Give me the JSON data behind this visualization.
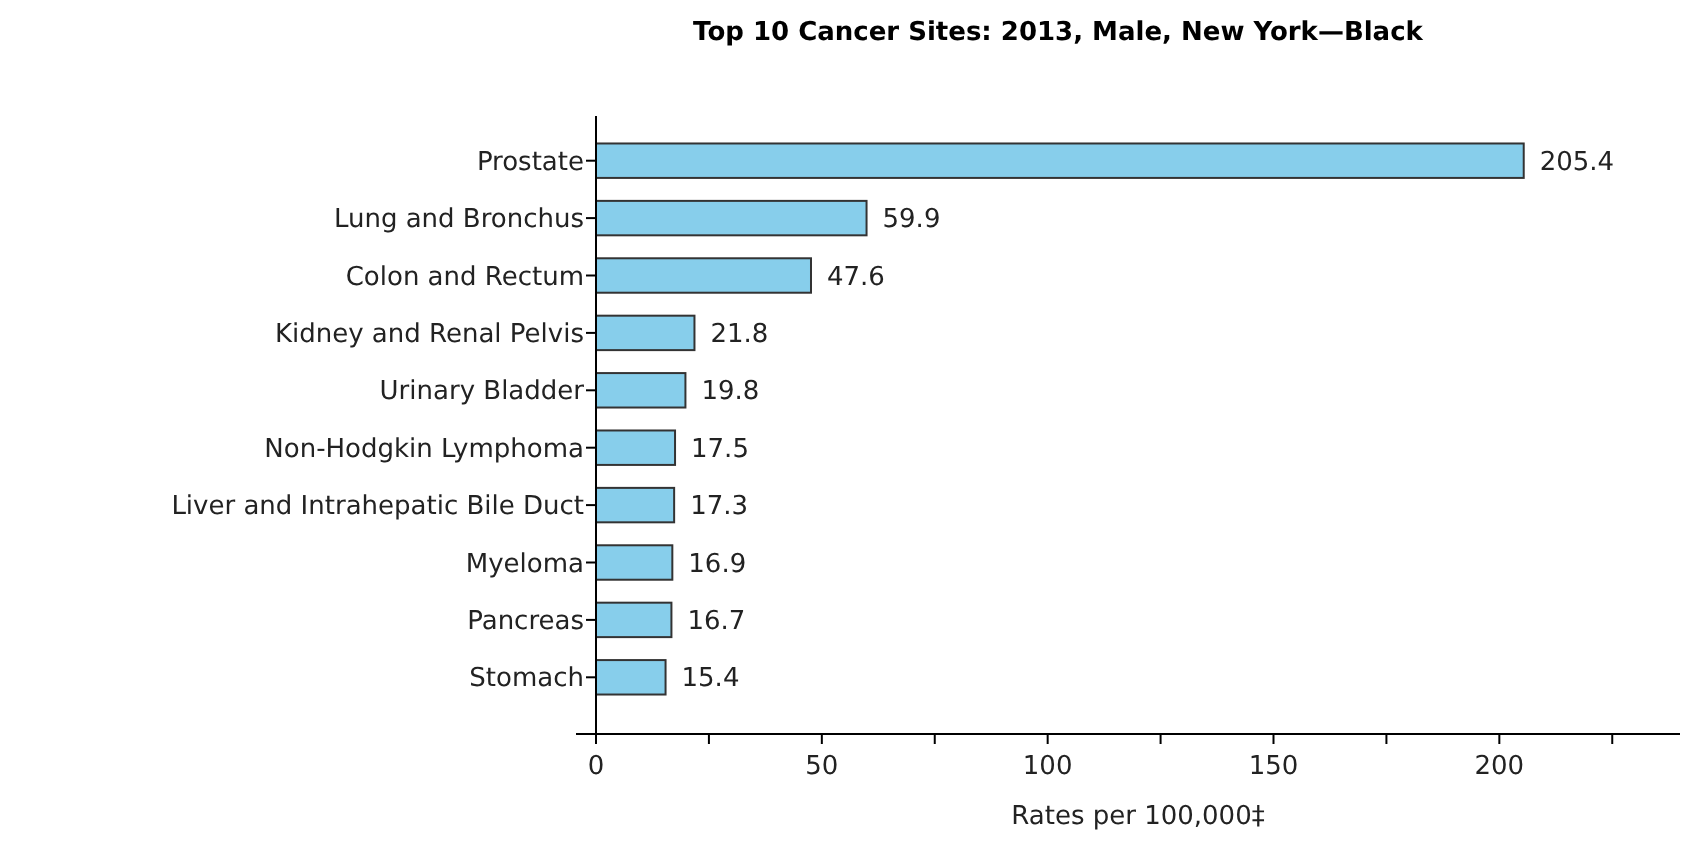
{
  "chart_data": {
    "type": "bar",
    "orientation": "horizontal",
    "title": "Top 10 Cancer Sites: 2013, Male, New York—Black",
    "xlabel": "Rates per 100,000‡",
    "categories": [
      "Prostate",
      "Lung and Bronchus",
      "Colon and Rectum",
      "Kidney and Renal Pelvis",
      "Urinary Bladder",
      "Non-Hodgkin Lymphoma",
      "Liver and Intrahepatic Bile Duct",
      "Myeloma",
      "Pancreas",
      "Stomach"
    ],
    "values": [
      205.4,
      59.9,
      47.6,
      21.8,
      19.8,
      17.5,
      17.3,
      16.9,
      16.7,
      15.4
    ],
    "color": "#87ceeb",
    "xlim": [
      0,
      240
    ],
    "xticks": [
      0,
      {
        "value": 25,
        "label": null
      },
      50,
      {
        "value": 75,
        "label": null
      },
      100,
      {
        "value": 125,
        "label": null
      },
      150,
      {
        "value": 175,
        "label": null
      },
      200,
      {
        "value": 225,
        "label": null
      }
    ],
    "data_labels": true
  }
}
